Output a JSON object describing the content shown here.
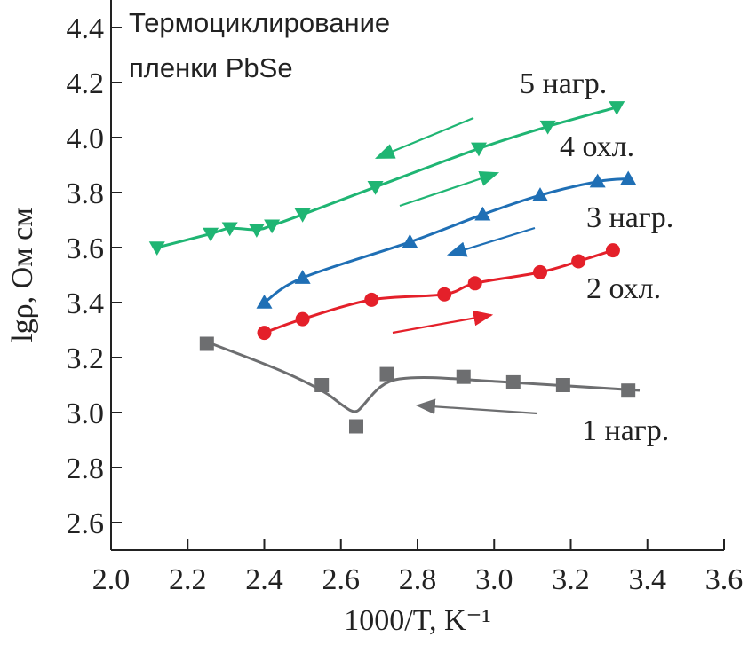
{
  "chart_data": {
    "type": "line",
    "title": [
      "Термоциклирование",
      "пленки PbSe"
    ],
    "xlabel": "1000/T,  K⁻¹",
    "ylabel": "lgρ, Ом см",
    "xlim": [
      2.0,
      3.6
    ],
    "ylim": [
      2.5,
      4.5
    ],
    "xticks": [
      {
        "value": 2.0,
        "label": "2.0"
      },
      2.2,
      2.4,
      2.6,
      2.8,
      {
        "value": 3.0,
        "label": "3.0"
      },
      3.2,
      3.4,
      3.6
    ],
    "yticks": [
      2.6,
      2.8,
      {
        "value": 3.0,
        "label": "3.0"
      },
      3.2,
      3.4,
      3.6,
      3.8,
      {
        "value": 4.0,
        "label": "4.0"
      },
      4.2,
      4.4
    ],
    "annotations": [
      "5 нагр.",
      "4 охл.",
      "3 нагр.",
      "2 охл.",
      "1 нагр."
    ],
    "series": [
      {
        "color": "#6d6e70",
        "marker": "square",
        "line": false,
        "x": [
          2.25,
          2.55,
          2.64,
          2.72,
          2.92,
          3.05,
          3.18,
          3.35
        ],
        "values": [
          3.25,
          3.1,
          2.95,
          3.14,
          3.13,
          3.11,
          3.1,
          3.08
        ]
      },
      {
        "color": "#e4202a",
        "marker": "circle",
        "line": true,
        "x": [
          2.4,
          2.5,
          2.68,
          2.87,
          2.95,
          3.12,
          3.22,
          3.31
        ],
        "values": [
          3.29,
          3.34,
          3.41,
          3.43,
          3.47,
          3.51,
          3.55,
          3.59
        ]
      },
      {
        "color": "#1f6fb5",
        "marker": "triangle-up",
        "line": true,
        "x": [
          2.4,
          2.5,
          2.78,
          2.97,
          3.12,
          3.27,
          3.35
        ],
        "values": [
          3.4,
          3.49,
          3.62,
          3.72,
          3.79,
          3.84,
          3.85
        ]
      },
      {
        "color": "#1fb573",
        "marker": "triangle-down",
        "line": true,
        "x": [
          2.12,
          2.26,
          2.31,
          2.38,
          2.42,
          2.5,
          2.69,
          2.96,
          3.14,
          3.32
        ],
        "values": [
          3.6,
          3.65,
          3.67,
          3.665,
          3.68,
          3.72,
          3.82,
          3.96,
          4.04,
          4.11
        ]
      }
    ]
  }
}
